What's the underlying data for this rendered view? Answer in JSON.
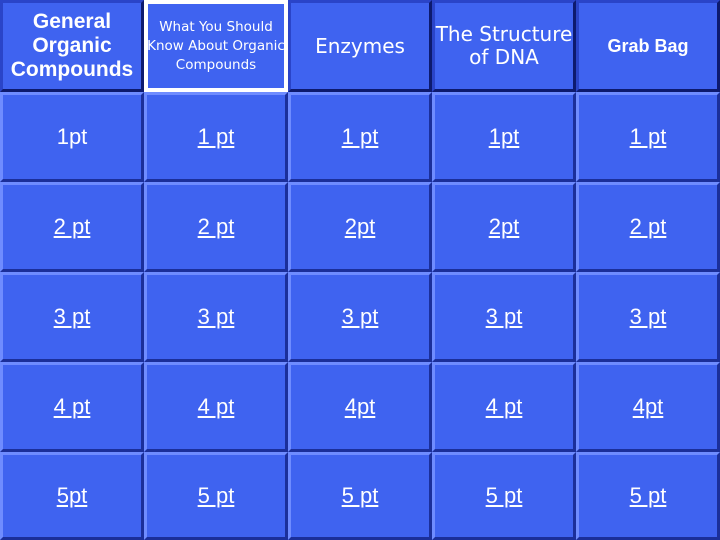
{
  "headers": [
    "General Organic Compounds",
    "What You Should Know About Organic Compounds",
    "Enzymes",
    "The Structure of DNA",
    "Grab Bag"
  ],
  "rows": [
    [
      "1pt",
      "1 pt",
      "1 pt",
      "1pt",
      "1 pt"
    ],
    [
      "2 pt",
      "2 pt",
      "2pt",
      "2pt",
      "2 pt"
    ],
    [
      "3 pt",
      "3 pt",
      "3 pt",
      "3 pt",
      "3 pt"
    ],
    [
      "4 pt",
      "4 pt",
      "4pt",
      "4 pt",
      "4pt"
    ],
    [
      "5pt",
      "5 pt",
      "5 pt",
      "5 pt",
      "5 pt"
    ]
  ],
  "colors": {
    "board": "#3f63f0",
    "background": "#000000",
    "text": "#ffffff"
  }
}
